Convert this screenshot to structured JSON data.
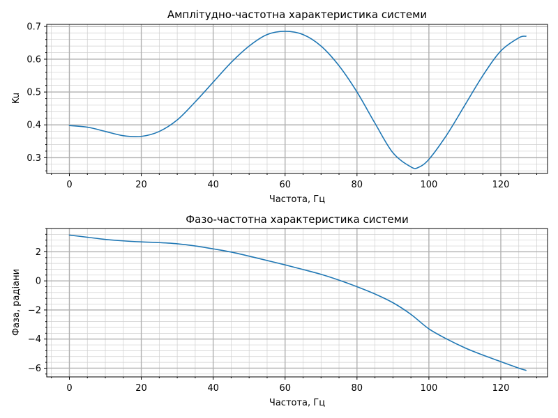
{
  "figure": {
    "background": "#ffffff"
  },
  "chart_data": [
    {
      "type": "line",
      "title": "Амплітудно-частотна характеристика системи",
      "xlabel": "Частота, Гц",
      "ylabel": "Ku",
      "xlim": [
        -6.3,
        133
      ],
      "ylim": [
        0.252,
        0.706
      ],
      "xticks": [
        0,
        20,
        40,
        60,
        80,
        100,
        120
      ],
      "yticks": [
        0.3,
        0.4,
        0.5,
        0.6,
        0.7
      ],
      "xtick_labels": [
        "0",
        "20",
        "40",
        "60",
        "80",
        "100",
        "120"
      ],
      "ytick_labels": [
        "0.3",
        "0.4",
        "0.5",
        "0.6",
        "0.7"
      ],
      "grid": {
        "major": true,
        "minor": true
      },
      "color": "#1f77b4",
      "series": [
        {
          "x": [
            0,
            5,
            10,
            15,
            20,
            25,
            30,
            35,
            40,
            45,
            50,
            55,
            60,
            65,
            70,
            75,
            80,
            85,
            90,
            95,
            97,
            100,
            105,
            110,
            115,
            120,
            125,
            127
          ],
          "y": [
            0.398,
            0.393,
            0.38,
            0.367,
            0.365,
            0.38,
            0.415,
            0.47,
            0.53,
            0.59,
            0.64,
            0.675,
            0.685,
            0.675,
            0.64,
            0.58,
            0.5,
            0.405,
            0.315,
            0.272,
            0.27,
            0.295,
            0.37,
            0.46,
            0.55,
            0.625,
            0.665,
            0.67
          ]
        }
      ]
    },
    {
      "type": "line",
      "title": "Фазо-частотна характеристика системи",
      "xlabel": "Частота, Гц",
      "ylabel": "Фаза, радіани",
      "xlim": [
        -6.3,
        133
      ],
      "ylim": [
        -6.6,
        3.6
      ],
      "xticks": [
        0,
        20,
        40,
        60,
        80,
        100,
        120
      ],
      "yticks": [
        -6,
        -4,
        -2,
        0,
        2
      ],
      "xtick_labels": [
        "0",
        "20",
        "40",
        "60",
        "80",
        "100",
        "120"
      ],
      "ytick_labels": [
        "−6",
        "−4",
        "−2",
        "0",
        "2"
      ],
      "grid": {
        "major": true,
        "minor": true
      },
      "color": "#1f77b4",
      "series": [
        {
          "x": [
            0,
            5,
            10,
            15,
            20,
            25,
            30,
            35,
            40,
            45,
            50,
            55,
            60,
            65,
            70,
            75,
            80,
            85,
            90,
            95,
            100,
            105,
            110,
            115,
            120,
            125,
            127
          ],
          "y": [
            3.15,
            3.0,
            2.85,
            2.75,
            2.68,
            2.63,
            2.55,
            2.4,
            2.2,
            1.98,
            1.7,
            1.4,
            1.1,
            0.78,
            0.45,
            0.05,
            -0.4,
            -0.9,
            -1.5,
            -2.3,
            -3.3,
            -4.0,
            -4.6,
            -5.1,
            -5.55,
            -6.0,
            -6.15
          ]
        }
      ]
    }
  ]
}
